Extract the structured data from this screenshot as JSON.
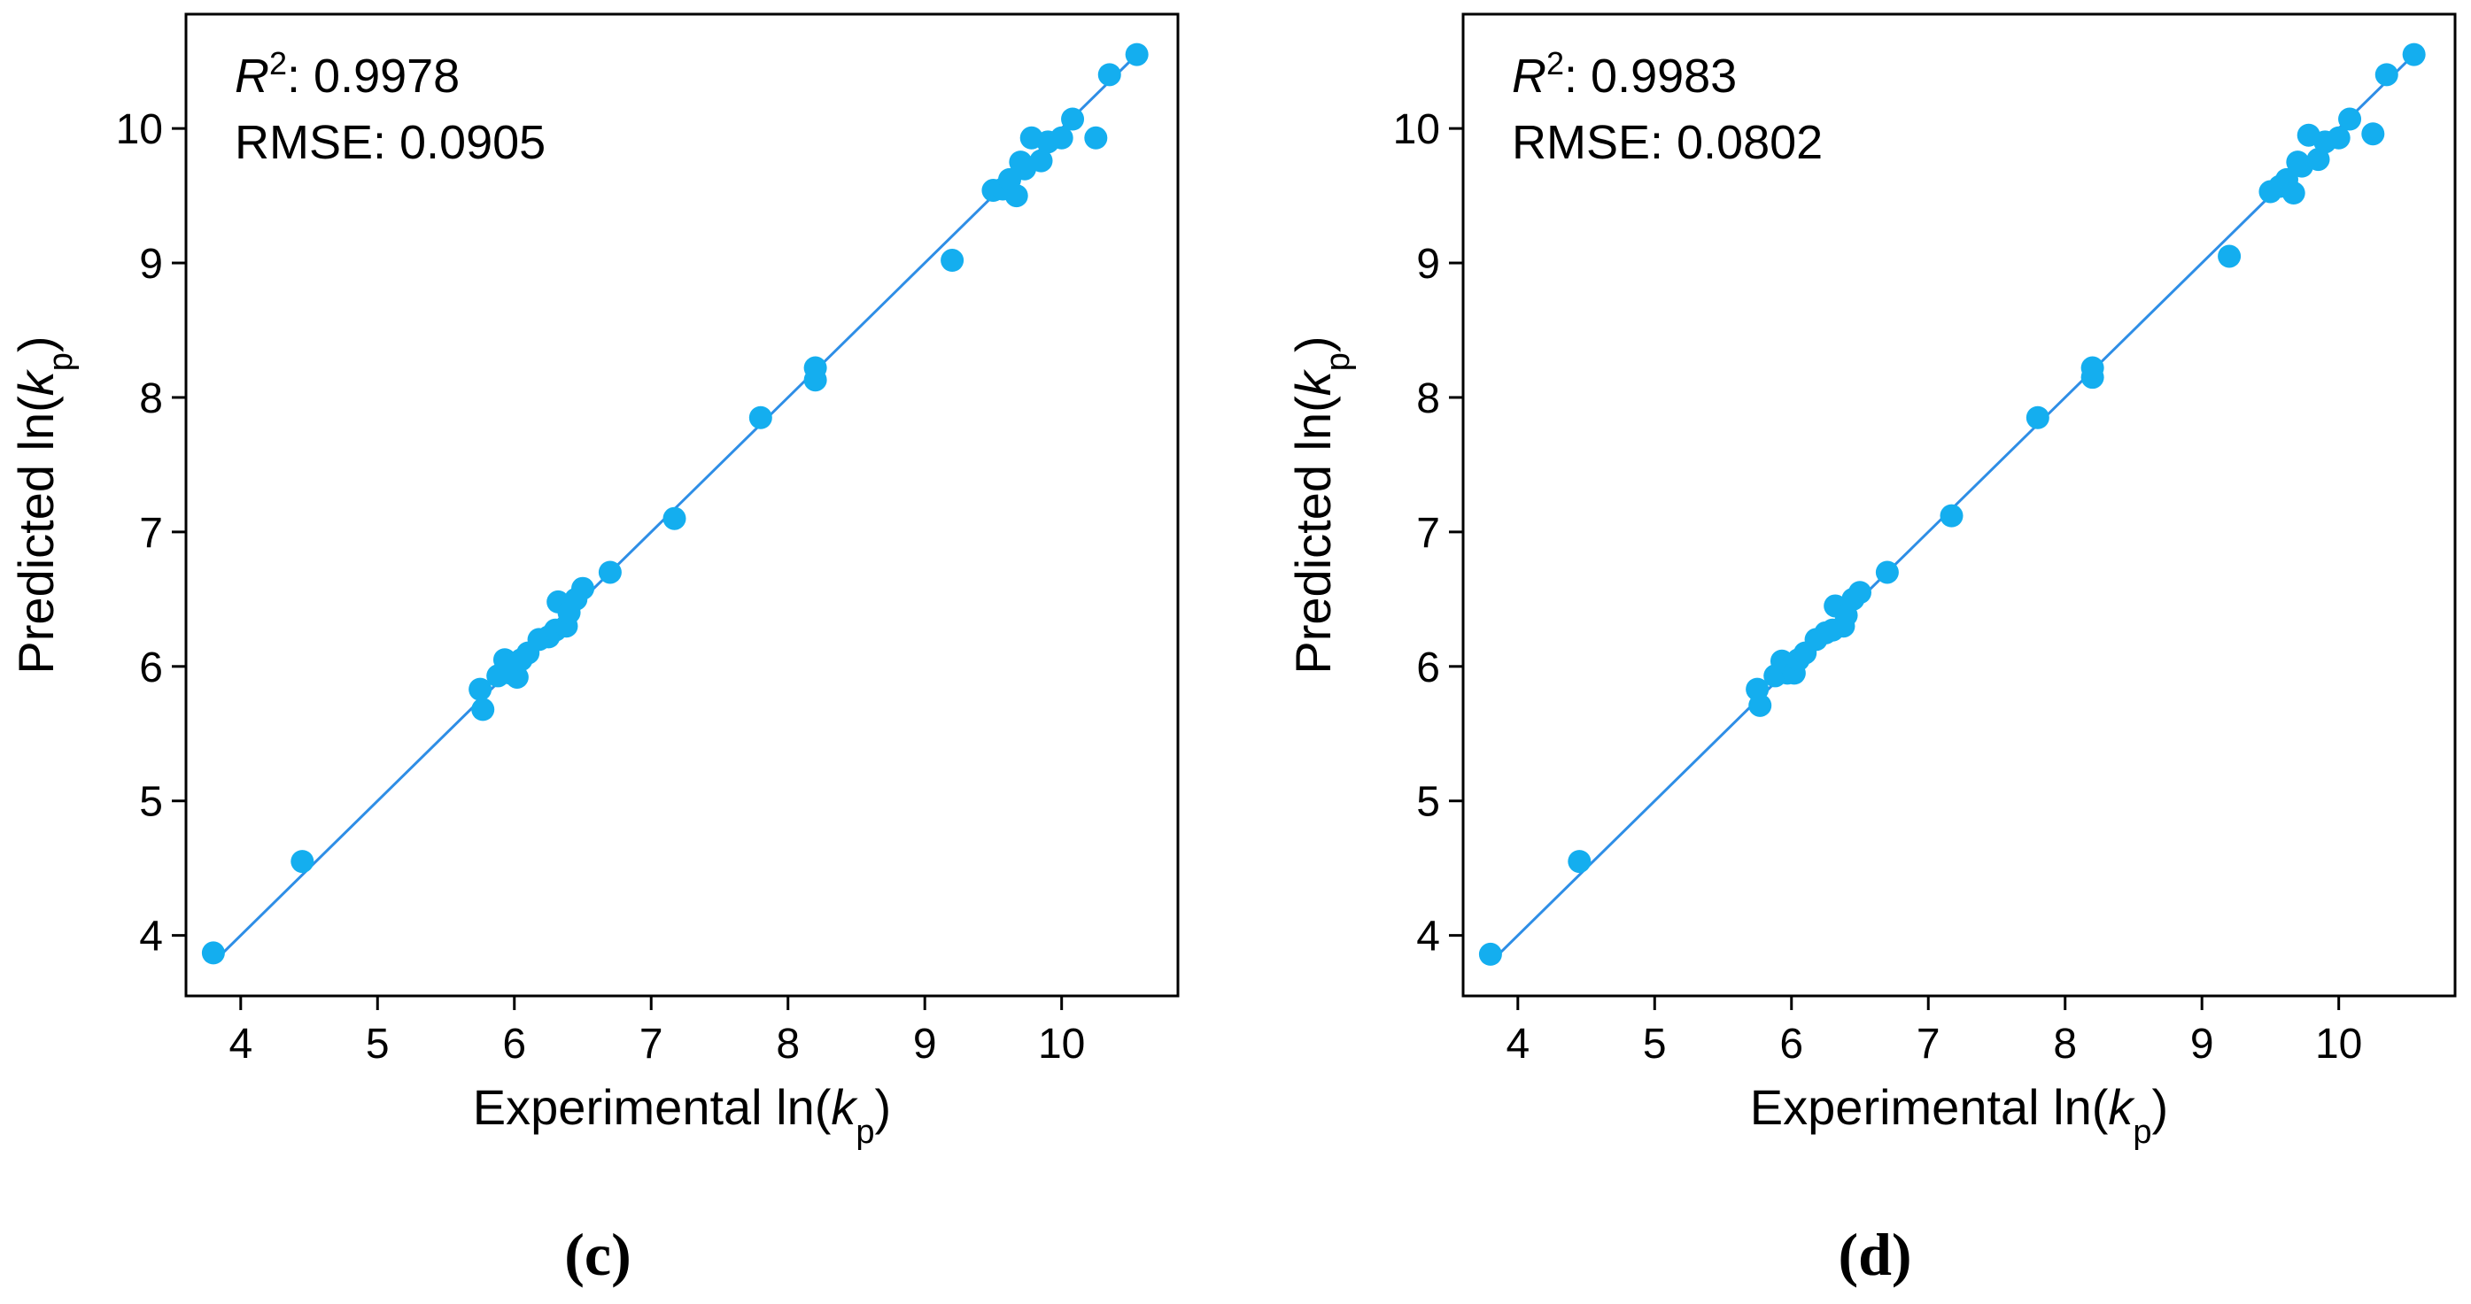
{
  "chart_data": [
    {
      "type": "scatter",
      "panel": "c",
      "caption": "(c)",
      "xlabel": "Experimental ln(kp)",
      "ylabel": "Predicted ln(kp)",
      "xlabel_parts": {
        "pre": "Experimental ln(",
        "var": "k",
        "sub": "p",
        "post": ")"
      },
      "ylabel_parts": {
        "pre": "Predicted ln(",
        "var": "k",
        "sub": "p",
        "post": ")"
      },
      "xlim": [
        3.6,
        10.85
      ],
      "ylim": [
        3.55,
        10.85
      ],
      "xticks": [
        4,
        5,
        6,
        7,
        8,
        9,
        10
      ],
      "yticks": [
        4,
        5,
        6,
        7,
        8,
        9,
        10
      ],
      "r2_label": "R",
      "r2_sup": "2",
      "r2_value": ": 0.9978",
      "rmse_text": "RMSE: 0.0905",
      "marker_color": "#14aeef",
      "line_color": "#2e8ee6",
      "fit_line": [
        [
          3.8,
          3.8
        ],
        [
          10.55,
          10.55
        ]
      ],
      "x": [
        3.8,
        4.45,
        5.75,
        5.77,
        5.88,
        5.93,
        5.97,
        6.0,
        6.02,
        6.05,
        6.1,
        6.18,
        6.25,
        6.3,
        6.32,
        6.38,
        6.4,
        6.45,
        6.5,
        6.7,
        7.17,
        7.8,
        8.2,
        8.2,
        9.2,
        9.5,
        9.57,
        9.62,
        9.67,
        9.7,
        9.73,
        9.78,
        9.85,
        9.9,
        10.0,
        10.08,
        10.25,
        10.35,
        10.55
      ],
      "y": [
        3.87,
        4.55,
        5.83,
        5.68,
        5.93,
        6.05,
        5.95,
        6.02,
        5.92,
        6.05,
        6.1,
        6.2,
        6.22,
        6.27,
        6.48,
        6.3,
        6.4,
        6.5,
        6.58,
        6.7,
        7.1,
        7.85,
        8.13,
        8.22,
        9.02,
        9.54,
        9.55,
        9.62,
        9.5,
        9.75,
        9.7,
        9.93,
        9.76,
        9.9,
        9.93,
        10.07,
        9.93,
        10.4,
        10.55
      ]
    },
    {
      "type": "scatter",
      "panel": "d",
      "caption": "(d)",
      "xlabel": "Experimental ln(kp)",
      "ylabel": "Predicted ln(kp)",
      "xlabel_parts": {
        "pre": "Experimental ln(",
        "var": "k",
        "sub": "p",
        "post": ")"
      },
      "ylabel_parts": {
        "pre": "Predicted ln(",
        "var": "k",
        "sub": "p",
        "post": ")"
      },
      "xlim": [
        3.6,
        10.85
      ],
      "ylim": [
        3.55,
        10.85
      ],
      "xticks": [
        4,
        5,
        6,
        7,
        8,
        9,
        10
      ],
      "yticks": [
        4,
        5,
        6,
        7,
        8,
        9,
        10
      ],
      "r2_label": "R",
      "r2_sup": "2",
      "r2_value": ": 0.9983",
      "rmse_text": "RMSE: 0.0802",
      "marker_color": "#14aeef",
      "line_color": "#2e8ee6",
      "fit_line": [
        [
          3.8,
          3.8
        ],
        [
          10.55,
          10.55
        ]
      ],
      "x": [
        3.8,
        4.45,
        5.75,
        5.77,
        5.88,
        5.93,
        5.97,
        6.0,
        6.02,
        6.05,
        6.1,
        6.18,
        6.25,
        6.3,
        6.32,
        6.38,
        6.4,
        6.45,
        6.5,
        6.7,
        7.17,
        7.8,
        8.2,
        8.2,
        9.2,
        9.5,
        9.57,
        9.62,
        9.67,
        9.7,
        9.73,
        9.78,
        9.85,
        9.9,
        10.0,
        10.08,
        10.25,
        10.35,
        10.55
      ],
      "y": [
        3.86,
        4.55,
        5.83,
        5.71,
        5.93,
        6.04,
        5.95,
        6.0,
        5.95,
        6.05,
        6.1,
        6.2,
        6.25,
        6.27,
        6.45,
        6.3,
        6.38,
        6.5,
        6.55,
        6.7,
        7.12,
        7.85,
        8.15,
        8.22,
        9.05,
        9.53,
        9.57,
        9.62,
        9.52,
        9.75,
        9.72,
        9.95,
        9.77,
        9.9,
        9.93,
        10.07,
        9.96,
        10.4,
        10.55
      ]
    }
  ]
}
